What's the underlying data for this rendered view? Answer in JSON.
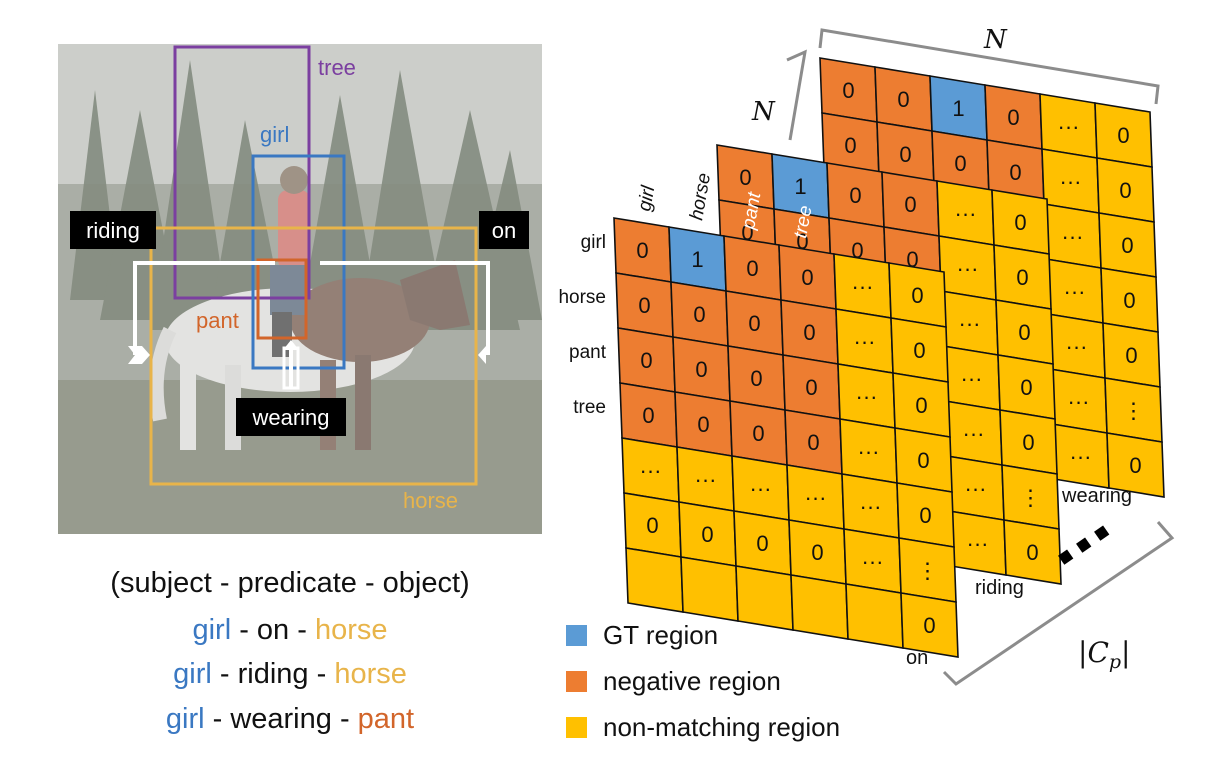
{
  "photo_labels": {
    "tree": "tree",
    "girl": "girl",
    "riding": "riding",
    "on": "on",
    "pant": "pant",
    "wearing": "wearing",
    "horse": "horse"
  },
  "caption": {
    "header": "(subject - predicate - object)",
    "triples": [
      {
        "subject": "girl",
        "predicate": "on",
        "object": "horse",
        "object_color": "#e8b44a"
      },
      {
        "subject": "girl",
        "predicate": "riding",
        "object": "horse",
        "object_color": "#e8b44a"
      },
      {
        "subject": "girl",
        "predicate": "wearing",
        "object": "pant",
        "object_color": "#d2652a"
      }
    ],
    "separator": " - "
  },
  "matrices": {
    "row_labels": [
      "girl",
      "horse",
      "pant",
      "tree"
    ],
    "col_labels": [
      "girl",
      "horse",
      "pant",
      "tree"
    ],
    "dots": "···",
    "vdots": "⋮",
    "layers": [
      {
        "name": "wearing",
        "rows": [
          [
            "0",
            "0",
            "1",
            "0"
          ],
          [
            "0",
            "0",
            "0",
            "0",
            "···",
            "0"
          ],
          [
            "0",
            "0",
            "0",
            "0",
            "···",
            "0"
          ]
        ],
        "tail": [
          "···",
          "0",
          "···",
          "0",
          "···",
          "0",
          "···",
          "⋮",
          "···",
          "0"
        ]
      },
      {
        "name": "riding"
      },
      {
        "name": "on",
        "grid": [
          [
            "0",
            "1",
            "0",
            "0",
            "···",
            "0"
          ],
          [
            "0",
            "0",
            "0",
            "0",
            "···",
            "0"
          ],
          [
            "0",
            "0",
            "0",
            "0",
            "···",
            "0"
          ],
          [
            "0",
            "0",
            "0",
            "0",
            "···",
            "0"
          ],
          [
            "···",
            "···",
            "···",
            "···",
            "···",
            "0"
          ],
          [
            "0",
            "0",
            "0",
            "0",
            "···",
            "⋮"
          ],
          [
            "",
            "",
            "",
            "",
            "",
            "0"
          ]
        ]
      }
    ],
    "dimension_labels": {
      "n_top": "N",
      "n_mid": "N",
      "cp_base": "C",
      "cp_sub": "p"
    },
    "ellipsis": "▪▪▪"
  },
  "legend": [
    {
      "label": "GT region",
      "color": "#5b9bd5"
    },
    {
      "label": "negative region",
      "color": "#ed7d31"
    },
    {
      "label": "non-matching region",
      "color": "#ffc000"
    }
  ],
  "colors": {
    "gt": "#5b9bd5",
    "negative": "#ed7d31",
    "nonmatching": "#ffc000",
    "tree_box": "#7b3fa0",
    "girl_box": "#3a78c2",
    "pant_box": "#d2652a",
    "horse_box": "#e8b44a"
  }
}
